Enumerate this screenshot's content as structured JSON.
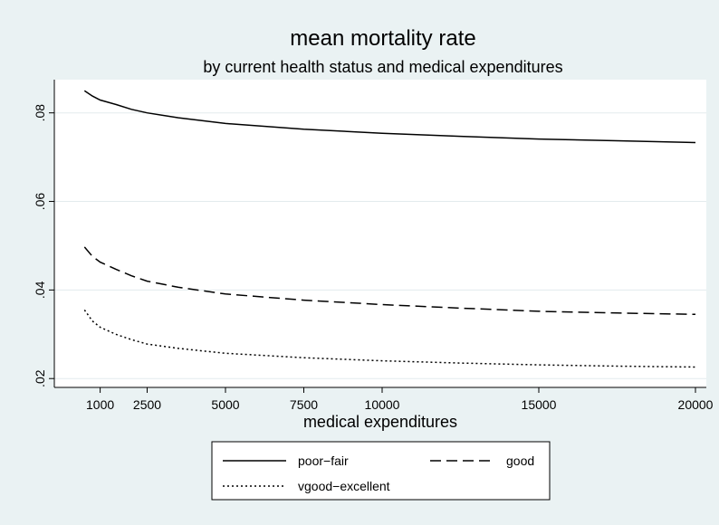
{
  "chart_data": {
    "type": "line",
    "title": "mean mortality rate",
    "subtitle": "by current health status and medical expenditures",
    "xlabel": "medical expenditures",
    "ylabel": "",
    "xlim": [
      0,
      20000
    ],
    "ylim": [
      0.018,
      0.0875
    ],
    "x_ticks": [
      1000,
      2500,
      5000,
      7500,
      10000,
      15000,
      20000
    ],
    "x_tick_labels": [
      "1000",
      "2500",
      "5000",
      "7500",
      "10000",
      "15000",
      "20000"
    ],
    "y_ticks": [
      0.02,
      0.04,
      0.06,
      0.08
    ],
    "y_tick_labels": [
      ".02",
      ".04",
      ".06",
      ".08"
    ],
    "grid": "horizontal",
    "legend_position": "bottom",
    "colors": {
      "background": "#eaf2f3",
      "plot": "#ffffff",
      "grid": "#e3ebed",
      "line": "#000000"
    },
    "x": [
      500,
      750,
      1000,
      1500,
      2000,
      2500,
      3500,
      5000,
      7500,
      10000,
      12500,
      15000,
      17500,
      20000
    ],
    "series": [
      {
        "name": "poor−fair",
        "dash": "solid",
        "values": [
          0.085,
          0.0838,
          0.0829,
          0.0819,
          0.0808,
          0.08,
          0.0789,
          0.0776,
          0.0763,
          0.0754,
          0.0747,
          0.0741,
          0.0737,
          0.0733
        ]
      },
      {
        "name": "good",
        "dash": "dash",
        "values": [
          0.0497,
          0.0476,
          0.0463,
          0.0447,
          0.0432,
          0.042,
          0.0406,
          0.0391,
          0.0377,
          0.0367,
          0.0359,
          0.0352,
          0.0348,
          0.0345
        ]
      },
      {
        "name": "vgood−excellent",
        "dash": "dot",
        "values": [
          0.0355,
          0.033,
          0.0316,
          0.03,
          0.0288,
          0.0278,
          0.0268,
          0.0257,
          0.0247,
          0.024,
          0.0235,
          0.0231,
          0.0228,
          0.0226
        ]
      }
    ]
  }
}
